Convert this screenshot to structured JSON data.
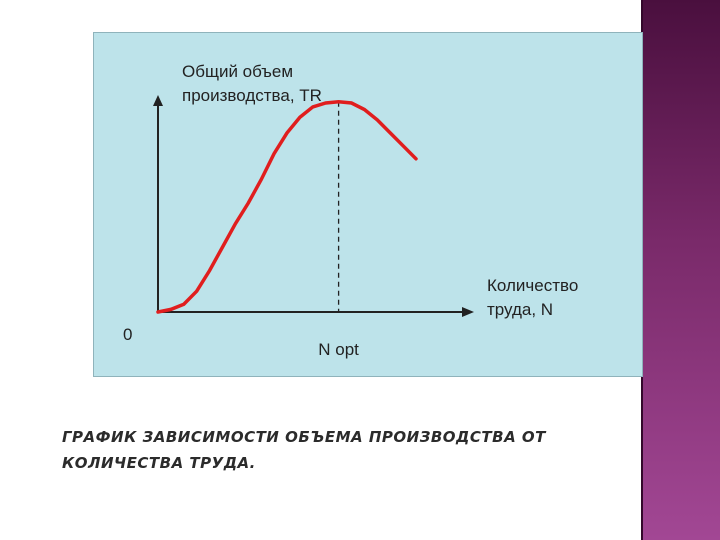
{
  "colors": {
    "panel": "#bde3ea",
    "curve": "#e01e1e",
    "axis": "#222222",
    "side_bar": "#7a2a6a"
  },
  "chart_data": {
    "type": "line",
    "title": "",
    "ylabel_lines": [
      "Общий объем",
      "производства, TR"
    ],
    "xlabel_lines": [
      "Количество",
      "труда, N"
    ],
    "origin_label": "0",
    "marker_label": "N opt",
    "x": [
      0,
      0.5,
      1,
      1.5,
      2,
      2.5,
      3,
      3.5,
      4,
      4.5,
      5,
      5.5,
      6,
      6.5,
      7,
      7.5,
      8,
      8.5,
      9,
      9.5,
      10
    ],
    "series": [
      {
        "values": [
          0,
          0.1,
          0.3,
          0.8,
          1.6,
          2.5,
          3.4,
          4.2,
          5.1,
          6.1,
          6.9,
          7.5,
          7.9,
          8.05,
          8.1,
          8.05,
          7.8,
          7.4,
          6.9,
          6.4,
          5.9
        ]
      }
    ],
    "peak_x": 7,
    "xlim": [
      0,
      12.2
    ],
    "ylim": [
      0,
      10.4
    ],
    "grid": false
  },
  "caption_lines": [
    "ГРАФИК ЗАВИСИМОСТИ ОБЪЕМА ПРОИЗВОДСТВА ОТ",
    "КОЛИЧЕСТВА ТРУДА."
  ]
}
